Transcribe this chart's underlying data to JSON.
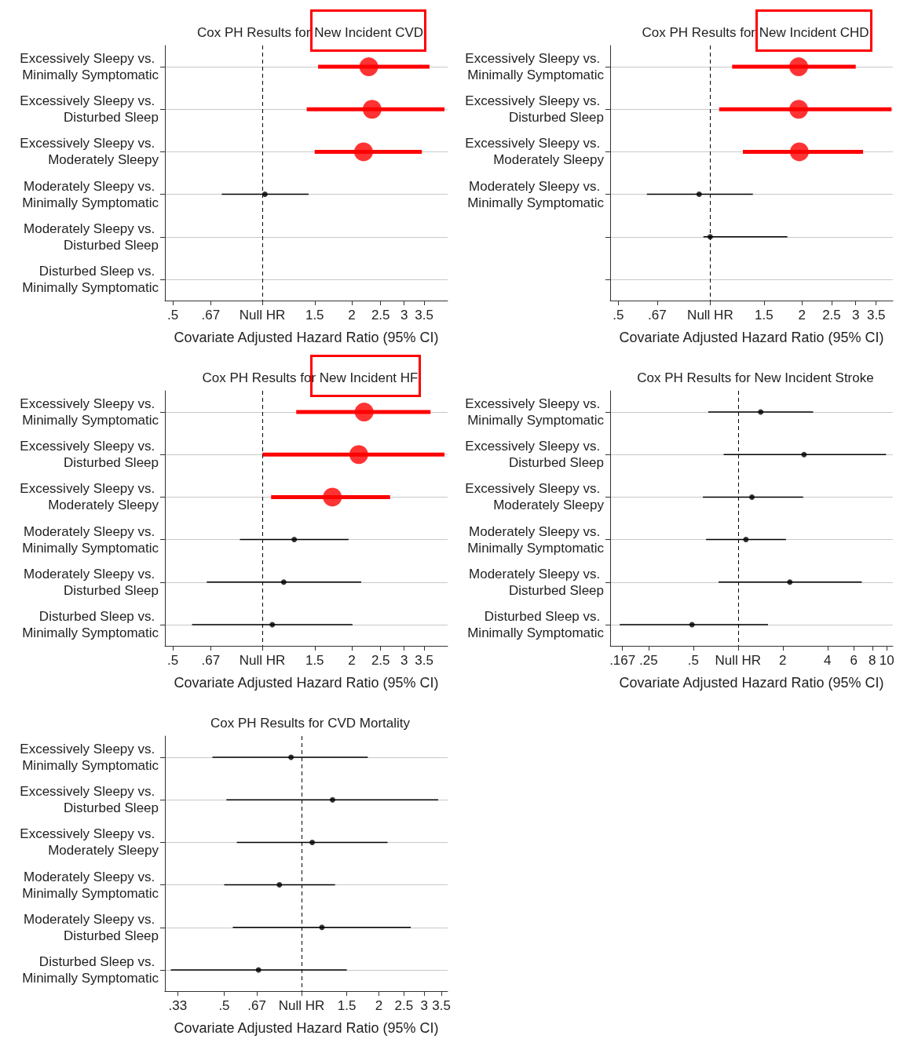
{
  "chart_data": [
    {
      "type": "scatter",
      "title": "Cox PH Results for New Incident CVD",
      "xlabel": "Covariate Adjusted Hazard Ratio (95% CI)",
      "orientation": "horizontal",
      "log": "x",
      "grid": "y",
      "marker": "circle",
      "color": "#000000",
      "categories": [
        "Excessively Sleepy vs. Minimally Symptomatic",
        "Excessively Sleepy vs. Disturbed Sleep",
        "Excessively Sleepy vs. Moderately Sleepy",
        "Moderately Sleepy vs. Minimally Symptomatic",
        "Moderately Sleepy vs. Disturbed Sleep",
        "Disturbed Sleep vs. Minimally Symptomatic"
      ],
      "values": [
        2.28,
        2.34,
        2.19,
        1.02,
        null,
        null
      ],
      "errors": [
        [
          1.54,
          3.65
        ],
        [
          1.41,
          4.1
        ],
        [
          1.5,
          3.44
        ],
        [
          0.73,
          1.43
        ],
        null,
        null
      ],
      "colors": [
        "#ff0000",
        "#ff0000",
        "#ff0000",
        "#000000",
        "#000000",
        "#000000"
      ],
      "xlim": [
        0.47,
        4.2
      ],
      "xticks": [
        {
          "value": 0.5,
          "label": ".5"
        },
        {
          "value": 0.67,
          "label": ".67"
        },
        {
          "value": 1,
          "label": "Null HR"
        },
        1.5,
        2,
        2.5,
        3,
        3.5
      ],
      "ref_lines": [
        {
          "axis": "x",
          "value": 1,
          "line_style": "dashed"
        }
      ]
    },
    {
      "type": "scatter",
      "title": "Cox PH Results for New Incident CHD",
      "xlabel": "Covariate Adjusted Hazard Ratio (95% CI)",
      "orientation": "horizontal",
      "log": "x",
      "grid": "y",
      "marker": "circle",
      "color": "#000000",
      "categories": [
        "Excessively Sleepy vs. Minimally Symptomatic",
        "Excessively Sleepy vs. Disturbed Sleep",
        "Excessively Sleepy vs. Moderately Sleepy",
        "Moderately Sleepy vs. Minimally Symptomatic",
        null,
        null
      ],
      "values": [
        1.95,
        1.95,
        1.96,
        0.92,
        1.0,
        null
      ],
      "errors": [
        [
          1.18,
          3.0
        ],
        [
          1.07,
          3.93
        ],
        [
          1.28,
          3.17
        ],
        [
          0.62,
          1.38
        ],
        [
          0.95,
          1.79
        ],
        null
      ],
      "colors": [
        "#ff0000",
        "#ff0000",
        "#ff0000",
        "#000000",
        "#000000",
        "#000000"
      ],
      "xlim": [
        0.47,
        3.97
      ],
      "xticks": [
        {
          "value": 0.5,
          "label": ".5"
        },
        {
          "value": 0.67,
          "label": ".67"
        },
        {
          "value": 1,
          "label": "Null HR"
        },
        1.5,
        2,
        2.5,
        3,
        3.5
      ],
      "ref_lines": [
        {
          "axis": "x",
          "value": 1,
          "line_style": "dashed"
        }
      ]
    },
    {
      "type": "scatter",
      "title": "Cox PH Results for New Incident HF",
      "xlabel": "Covariate Adjusted Hazard Ratio (95% CI)",
      "orientation": "horizontal",
      "log": "x",
      "grid": "y",
      "marker": "circle",
      "color": "#000000",
      "categories": [
        "Excessively Sleepy vs. Minimally Symptomatic",
        "Excessively Sleepy vs. Disturbed Sleep",
        "Excessively Sleepy vs. Moderately Sleepy",
        "Moderately Sleepy vs. Minimally Symptomatic",
        "Moderately Sleepy vs. Disturbed Sleep",
        "Disturbed Sleep vs. Minimally Symptomatic"
      ],
      "values": [
        2.2,
        2.11,
        1.72,
        1.28,
        1.18,
        1.08
      ],
      "errors": [
        [
          1.3,
          3.68
        ],
        [
          1.0,
          4.1
        ],
        [
          1.07,
          2.69
        ],
        [
          0.84,
          1.95
        ],
        [
          0.65,
          2.15
        ],
        [
          0.58,
          2.01
        ]
      ],
      "colors": [
        "#ff0000",
        "#ff0000",
        "#ff0000",
        "#000000",
        "#000000",
        "#000000"
      ],
      "xlim": [
        0.47,
        4.2
      ],
      "xticks": [
        {
          "value": 0.5,
          "label": ".5"
        },
        {
          "value": 0.67,
          "label": ".67"
        },
        {
          "value": 1,
          "label": "Null HR"
        },
        1.5,
        2,
        2.5,
        3,
        3.5
      ],
      "ref_lines": [
        {
          "axis": "x",
          "value": 1,
          "line_style": "dashed"
        }
      ]
    },
    {
      "type": "scatter",
      "title": "Cox PH Results for New Incident Stroke",
      "xlabel": "Covariate Adjusted Hazard Ratio (95% CI)",
      "orientation": "horizontal",
      "log": "x",
      "grid": "y",
      "marker": "circle",
      "color": "#000000",
      "categories": [
        "Excessively Sleepy vs. Minimally Symptomatic",
        "Excessively Sleepy vs. Disturbed Sleep",
        "Excessively Sleepy vs. Moderately Sleepy",
        "Moderately Sleepy vs. Minimally Symptomatic",
        "Moderately Sleepy vs. Disturbed Sleep",
        "Disturbed Sleep vs. Minimally Symptomatic"
      ],
      "values": [
        1.42,
        2.78,
        1.24,
        1.13,
        2.23,
        0.49
      ],
      "errors": [
        [
          0.63,
          3.2
        ],
        [
          0.8,
          9.9
        ],
        [
          0.58,
          2.74
        ],
        [
          0.61,
          2.1
        ],
        [
          0.74,
          6.8
        ],
        [
          0.16,
          1.59
        ]
      ],
      "xlim": [
        0.138,
        11
      ],
      "xticks": [
        {
          "value": 0.167,
          "label": ".167"
        },
        {
          "value": 0.25,
          "label": ".25"
        },
        {
          "value": 0.5,
          "label": ".5"
        },
        {
          "value": 1,
          "label": "Null HR"
        },
        2,
        4,
        6,
        8,
        10
      ],
      "ref_lines": [
        {
          "axis": "x",
          "value": 1,
          "line_style": "dashed"
        }
      ]
    },
    {
      "type": "scatter",
      "title": "Cox PH Results for CVD Mortality",
      "xlabel": "Covariate Adjusted Hazard Ratio (95% CI)",
      "orientation": "horizontal",
      "log": "x",
      "grid": "y",
      "marker": "circle",
      "color": "#000000",
      "categories": [
        "Excessively Sleepy vs. Minimally Symptomatic",
        "Excessively Sleepy vs. Disturbed Sleep",
        "Excessively Sleepy vs. Moderately Sleepy",
        "Moderately Sleepy vs. Minimally Symptomatic",
        "Moderately Sleepy vs. Disturbed Sleep",
        "Disturbed Sleep vs. Minimally Symptomatic"
      ],
      "values": [
        0.91,
        1.32,
        1.1,
        0.82,
        1.2,
        0.68
      ],
      "errors": [
        [
          0.45,
          1.81
        ],
        [
          0.51,
          3.4
        ],
        [
          0.56,
          2.16
        ],
        [
          0.5,
          1.35
        ],
        [
          0.54,
          2.66
        ],
        [
          0.31,
          1.5
        ]
      ],
      "xlim": [
        0.294,
        3.7
      ],
      "xticks": [
        {
          "value": 0.33,
          "label": ".33"
        },
        {
          "value": 0.5,
          "label": ".5"
        },
        {
          "value": 0.67,
          "label": ".67"
        },
        {
          "value": 1,
          "label": "Null HR"
        },
        1.5,
        2,
        2.5,
        3,
        3.5
      ],
      "ref_lines": [
        {
          "axis": "x",
          "value": 1,
          "line_style": "dashed"
        }
      ]
    }
  ]
}
